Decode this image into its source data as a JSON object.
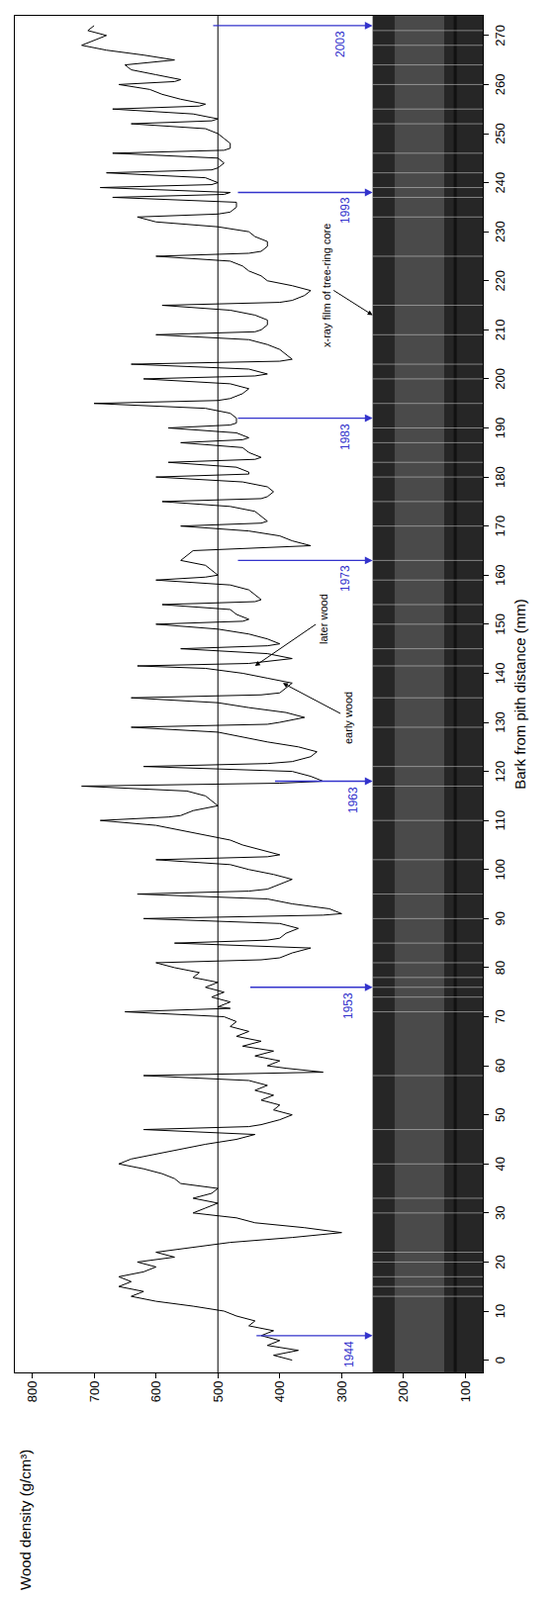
{
  "chart_data": {
    "type": "line",
    "x_label": "Bark from pith distance (mm)",
    "y_label": "Wood density (g/cm³)",
    "color": "#000000",
    "grid": false,
    "xlim": [
      -2.5,
      274
    ],
    "xticks": [
      0,
      10,
      20,
      30,
      40,
      50,
      60,
      70,
      80,
      90,
      100,
      110,
      120,
      130,
      140,
      150,
      160,
      170,
      180,
      190,
      200,
      210,
      220,
      230,
      240,
      250,
      260,
      270
    ],
    "ylim": [
      72,
      828
    ],
    "yticks": [
      100,
      200,
      300,
      400,
      500,
      600,
      700,
      800
    ],
    "reference_line": 500,
    "film_range": [
      72,
      250
    ],
    "x": [
      0,
      1,
      2,
      3,
      4,
      5,
      6,
      7,
      8,
      9,
      10,
      11,
      12,
      13,
      14,
      15,
      16,
      17,
      18,
      19,
      20,
      21,
      22,
      23,
      24,
      25,
      26,
      27,
      28,
      29,
      30,
      31,
      32,
      33,
      34,
      35,
      36,
      37,
      38,
      39,
      40,
      41,
      42,
      43,
      44,
      45,
      46,
      47,
      47.6,
      48,
      49,
      50,
      51,
      52,
      53,
      54,
      55,
      56,
      57,
      58,
      58.7,
      59.5,
      60,
      61,
      62,
      63,
      64,
      65,
      66,
      67,
      68,
      69,
      70,
      71,
      71.7,
      72,
      73,
      74,
      75,
      76,
      77,
      78,
      79,
      80,
      81,
      81.6,
      82,
      83,
      84,
      85,
      85.6,
      86,
      87,
      88,
      89,
      90,
      90.7,
      91,
      92,
      93,
      94,
      95,
      95.6,
      96,
      97,
      98,
      99,
      100,
      101,
      102,
      102.6,
      103,
      104,
      105,
      106,
      107,
      108,
      109,
      110,
      110.7,
      111,
      112,
      113,
      114,
      115,
      116,
      117,
      117.6,
      118,
      119,
      120,
      121,
      121.6,
      122,
      123,
      124,
      125,
      126,
      127,
      128,
      129,
      129.6,
      130,
      131,
      132,
      133,
      134,
      135,
      135.6,
      136,
      137,
      138,
      139,
      140,
      141,
      141.5,
      142,
      143,
      144,
      145,
      145.6,
      146,
      147,
      148,
      149,
      150,
      150.6,
      151,
      152,
      153,
      154,
      154.6,
      155,
      156,
      157,
      158,
      159,
      159.6,
      160,
      161,
      162,
      163,
      164,
      165,
      166,
      167,
      168,
      169,
      170,
      170.6,
      171,
      172,
      173,
      174,
      175,
      175.6,
      176,
      177,
      178,
      179,
      180,
      180.6,
      181,
      182,
      183,
      183.6,
      184,
      185,
      186,
      187,
      187.6,
      188,
      189,
      190,
      190.6,
      191,
      192,
      193,
      194,
      195,
      195.6,
      196,
      197,
      198,
      199,
      200,
      200.6,
      201,
      202,
      203,
      203.6,
      204,
      205,
      206,
      207,
      208,
      209,
      209.6,
      210,
      211,
      212,
      213,
      214,
      215,
      215.6,
      216,
      217,
      218,
      219,
      220,
      221,
      222,
      223,
      224,
      225,
      225.6,
      226,
      227,
      228,
      229,
      230,
      231,
      232,
      233,
      233.6,
      234,
      235,
      236,
      237,
      237.6,
      238,
      239,
      239.6,
      240,
      241,
      242,
      242.6,
      243,
      244,
      245,
      246,
      246.6,
      247,
      248,
      249,
      250,
      251,
      252,
      252.6,
      253,
      254,
      255,
      255.6,
      256,
      257,
      258,
      259,
      260,
      260.6,
      261,
      262,
      263,
      264,
      265,
      266,
      267,
      268,
      269,
      270,
      271,
      272
    ],
    "values": [
      380,
      410,
      370,
      420,
      400,
      430,
      410,
      450,
      440,
      470,
      490,
      540,
      600,
      640,
      620,
      660,
      640,
      660,
      620,
      600,
      630,
      570,
      600,
      540,
      480,
      380,
      300,
      360,
      440,
      470,
      540,
      520,
      500,
      540,
      510,
      500,
      560,
      570,
      590,
      620,
      660,
      640,
      600,
      560,
      520,
      470,
      440,
      620,
      450,
      430,
      400,
      380,
      410,
      400,
      430,
      410,
      440,
      420,
      450,
      620,
      330,
      390,
      420,
      400,
      440,
      410,
      460,
      430,
      470,
      450,
      480,
      470,
      490,
      650,
      480,
      500,
      480,
      510,
      490,
      520,
      500,
      540,
      530,
      570,
      600,
      430,
      400,
      380,
      350,
      570,
      420,
      400,
      390,
      370,
      400,
      620,
      330,
      300,
      320,
      380,
      420,
      630,
      450,
      420,
      400,
      380,
      410,
      450,
      480,
      600,
      420,
      400,
      430,
      460,
      480,
      520,
      560,
      600,
      690,
      580,
      560,
      540,
      500,
      510,
      520,
      550,
      720,
      400,
      330,
      350,
      380,
      620,
      420,
      380,
      350,
      340,
      370,
      420,
      460,
      500,
      640,
      420,
      400,
      360,
      390,
      450,
      500,
      640,
      430,
      400,
      390,
      380,
      420,
      460,
      520,
      630,
      450,
      380,
      420,
      560,
      420,
      400,
      420,
      450,
      500,
      600,
      460,
      450,
      470,
      480,
      590,
      440,
      430,
      440,
      450,
      480,
      600,
      520,
      500,
      510,
      520,
      560,
      550,
      540,
      350,
      380,
      400,
      450,
      560,
      430,
      420,
      430,
      440,
      480,
      590,
      430,
      420,
      410,
      420,
      460,
      600,
      450,
      450,
      470,
      580,
      440,
      430,
      450,
      460,
      560,
      460,
      450,
      470,
      580,
      480,
      470,
      470,
      480,
      520,
      700,
      500,
      480,
      460,
      450,
      480,
      620,
      440,
      420,
      450,
      640,
      400,
      380,
      390,
      400,
      420,
      450,
      600,
      440,
      430,
      420,
      420,
      440,
      480,
      590,
      400,
      380,
      360,
      350,
      380,
      420,
      430,
      450,
      460,
      480,
      600,
      450,
      430,
      420,
      420,
      440,
      450,
      500,
      600,
      630,
      500,
      480,
      470,
      470,
      670,
      490,
      480,
      690,
      510,
      500,
      520,
      680,
      510,
      500,
      490,
      500,
      670,
      490,
      480,
      480,
      490,
      500,
      520,
      640,
      510,
      500,
      540,
      670,
      530,
      520,
      560,
      590,
      610,
      660,
      570,
      560,
      600,
      640,
      650,
      570,
      620,
      680,
      720,
      700,
      680,
      710,
      700
    ],
    "year_markers": [
      {
        "text": "1944",
        "x": 5,
        "from": 440,
        "to": 250,
        "color": "#3333cc"
      },
      {
        "text": "1953",
        "x": 76,
        "from": 450,
        "to": 250,
        "color": "#3333cc"
      },
      {
        "text": "1963",
        "x": 118,
        "from": 410,
        "to": 250,
        "color": "#3333cc"
      },
      {
        "text": "1973",
        "x": 163,
        "from": 470,
        "to": 250,
        "color": "#3333cc"
      },
      {
        "text": "1983",
        "x": 192,
        "from": 470,
        "to": 250,
        "color": "#3333cc"
      },
      {
        "text": "1993",
        "x": 238,
        "from": 470,
        "to": 250,
        "color": "#3333cc"
      },
      {
        "text": "2003",
        "x": 272,
        "from": 510,
        "to": 250,
        "color": "#3333cc"
      }
    ],
    "annotations": [
      {
        "text": "x-ray film of tree-ring core",
        "x": 213,
        "y": 250
      },
      {
        "text": "early wood",
        "x": 138,
        "y": 395
      },
      {
        "text": "later wood",
        "x": 141.5,
        "y": 440
      }
    ]
  }
}
